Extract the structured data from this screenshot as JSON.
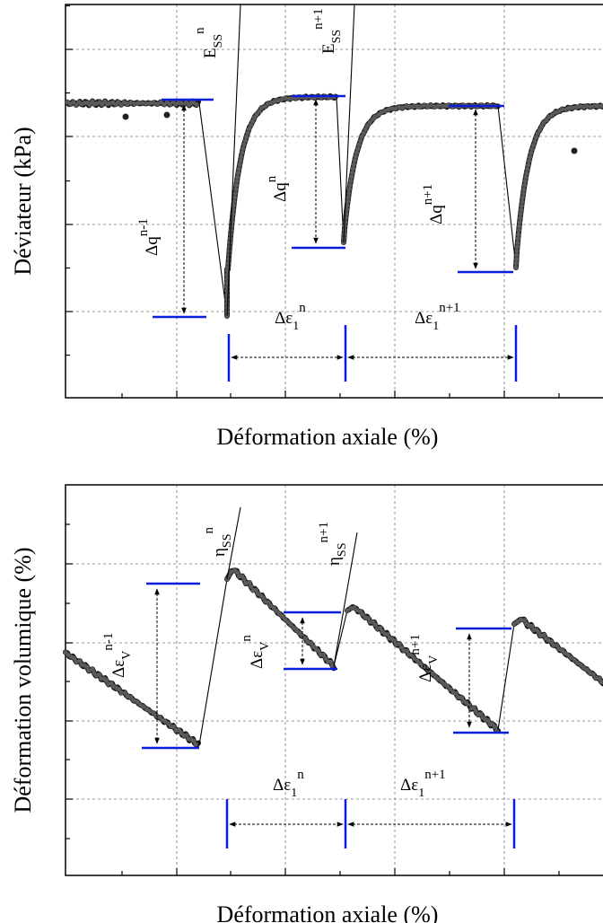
{
  "panels": [
    {
      "y_axis_label": "Déviateur (kPa)",
      "x_axis_label": "Déformation axiale (%)",
      "annotations": [
        {
          "base": "E",
          "sup": "n",
          "sub": "SS"
        },
        {
          "base": "E",
          "sup": "n+1",
          "sub": "SS"
        },
        {
          "base": "Δq",
          "sup": "n-1"
        },
        {
          "base": "Δq",
          "sup": "n"
        },
        {
          "base": "Δq",
          "sup": "n+1"
        },
        {
          "base": "Δε",
          "sub": "1",
          "sup": "n"
        },
        {
          "base": "Δε",
          "sub": "1",
          "sup": "n+1"
        }
      ]
    },
    {
      "y_axis_label": "Déformation volumique  (%)",
      "x_axis_label": "Déformation axiale  (%)",
      "annotations": [
        {
          "base": "η",
          "sup": "n",
          "sub": "SS"
        },
        {
          "base": "η",
          "sup": "n+1",
          "sub": "SS"
        },
        {
          "base": "Δε",
          "sub": "V",
          "sup": "n-1"
        },
        {
          "base": "Δε",
          "sub": "V",
          "sup": "n"
        },
        {
          "base": "Δε",
          "sub": "V",
          "sup": "n+1"
        },
        {
          "base": "Δε",
          "sub": "1",
          "sup": "n"
        },
        {
          "base": "Δε",
          "sub": "1",
          "sup": "n+1"
        }
      ]
    }
  ]
}
